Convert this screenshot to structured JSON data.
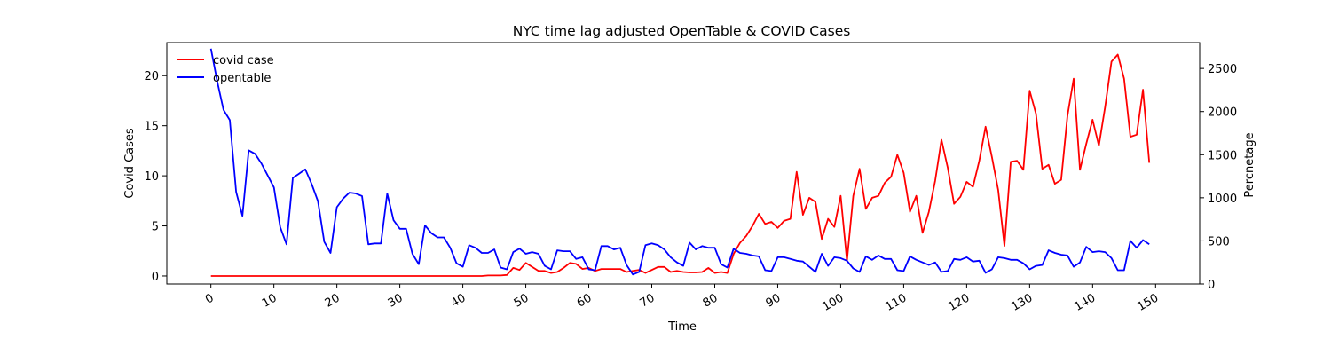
{
  "chart_data": {
    "type": "line",
    "title": "NYC time lag adjusted OpenTable & COVID Cases",
    "xlabel": "Time",
    "ylabel": "Covid Cases",
    "ylabel_right": "Percnetage",
    "xlim": [
      -7,
      157
    ],
    "ylim": [
      -0.8,
      23.3
    ],
    "ylim_right": [
      0,
      2800
    ],
    "xticks": [
      0,
      10,
      20,
      30,
      40,
      50,
      60,
      70,
      80,
      90,
      100,
      110,
      120,
      130,
      140,
      150
    ],
    "yticks": [
      0,
      5,
      10,
      15,
      20
    ],
    "yticks_right": [
      0,
      500,
      1000,
      1500,
      2000,
      2500
    ],
    "legend_position": "upper-left",
    "grid": false,
    "series": [
      {
        "name": "covid case",
        "axis": "left",
        "color": "#ff0000",
        "x": [
          0,
          1,
          2,
          3,
          4,
          5,
          6,
          7,
          8,
          9,
          10,
          11,
          12,
          13,
          14,
          15,
          16,
          17,
          18,
          19,
          20,
          21,
          22,
          23,
          24,
          25,
          26,
          27,
          28,
          29,
          30,
          31,
          32,
          33,
          34,
          35,
          36,
          37,
          38,
          39,
          40,
          41,
          42,
          43,
          44,
          45,
          46,
          47,
          48,
          49,
          50,
          51,
          52,
          53,
          54,
          55,
          56,
          57,
          58,
          59,
          60,
          61,
          62,
          63,
          64,
          65,
          66,
          67,
          68,
          69,
          70,
          71,
          72,
          73,
          74,
          75,
          76,
          77,
          78,
          79,
          80,
          81,
          82,
          83,
          84,
          85,
          86,
          87,
          88,
          89,
          90,
          91,
          92,
          93,
          94,
          95,
          96,
          97,
          98,
          99,
          100,
          101,
          102,
          103,
          104,
          105,
          106,
          107,
          108,
          109,
          110,
          111,
          112,
          113,
          114,
          115,
          116,
          117,
          118,
          119,
          120,
          121,
          122,
          123,
          124,
          125,
          126,
          127,
          128,
          129,
          130,
          131,
          132,
          133,
          134,
          135,
          136,
          137,
          138,
          139,
          140,
          141,
          142,
          143,
          144,
          145,
          146,
          147,
          148,
          149
        ],
        "y": [
          0,
          0,
          0,
          0,
          0,
          0,
          0,
          0,
          0,
          0,
          0,
          0,
          0,
          0,
          0,
          0,
          0,
          0,
          0,
          0,
          0,
          0,
          0,
          0,
          0,
          0,
          0,
          0,
          0,
          0,
          0,
          0,
          0,
          0,
          0,
          0,
          0,
          0,
          0,
          0,
          0,
          0,
          0,
          0,
          0.05,
          0.05,
          0.05,
          0.1,
          0.8,
          0.6,
          1.3,
          0.9,
          0.5,
          0.5,
          0.3,
          0.4,
          0.8,
          1.3,
          1.2,
          0.7,
          0.8,
          0.5,
          0.7,
          0.7,
          0.7,
          0.7,
          0.4,
          0.5,
          0.6,
          0.3,
          0.6,
          0.9,
          0.9,
          0.4,
          0.5,
          0.4,
          0.35,
          0.35,
          0.4,
          0.8,
          0.3,
          0.4,
          0.3,
          2.2,
          3.3,
          4.0,
          5.0,
          6.2,
          5.2,
          5.4,
          4.8,
          5.5,
          5.7,
          10.4,
          6.1,
          7.8,
          7.4,
          3.7,
          5.7,
          4.9,
          8.0,
          1.5,
          8.0,
          10.7,
          6.7,
          7.8,
          8.0,
          9.3,
          9.9,
          12.1,
          10.3,
          6.4,
          8.0,
          4.3,
          6.4,
          9.5,
          13.6,
          10.8,
          7.2,
          7.9,
          9.4,
          8.9,
          11.5,
          14.9,
          11.9,
          8.6,
          3.0,
          11.4,
          11.5,
          10.6,
          18.5,
          16.2,
          10.7,
          11.1,
          9.2,
          9.6,
          16.0,
          19.7,
          10.6,
          13.2,
          15.6,
          13.0,
          16.9,
          21.4,
          22.1,
          19.7,
          13.9,
          14.1,
          18.6,
          11.3
        ]
      },
      {
        "name": "opentable",
        "axis": "right",
        "color": "#0000ff",
        "x": [
          0,
          1,
          2,
          3,
          4,
          5,
          6,
          7,
          8,
          9,
          10,
          11,
          12,
          13,
          14,
          15,
          16,
          17,
          18,
          19,
          20,
          21,
          22,
          23,
          24,
          25,
          26,
          27,
          28,
          29,
          30,
          31,
          32,
          33,
          34,
          35,
          36,
          37,
          38,
          39,
          40,
          41,
          42,
          43,
          44,
          45,
          46,
          47,
          48,
          49,
          50,
          51,
          52,
          53,
          54,
          55,
          56,
          57,
          58,
          59,
          60,
          61,
          62,
          63,
          64,
          65,
          66,
          67,
          68,
          69,
          70,
          71,
          72,
          73,
          74,
          75,
          76,
          77,
          78,
          79,
          80,
          81,
          82,
          83,
          84,
          85,
          86,
          87,
          88,
          89,
          90,
          91,
          92,
          93,
          94,
          95,
          96,
          97,
          98,
          99,
          100,
          101,
          102,
          103,
          104,
          105,
          106,
          107,
          108,
          109,
          110,
          111,
          112,
          113,
          114,
          115,
          116,
          117,
          118,
          119,
          120,
          121,
          122,
          123,
          124,
          125,
          126,
          127,
          128,
          129,
          130,
          131,
          132,
          133,
          134,
          135,
          136,
          137,
          138,
          139,
          140,
          141,
          142,
          143,
          144,
          145,
          146,
          147,
          148,
          149
        ],
        "y": [
          2730,
          2350,
          2020,
          1900,
          1070,
          790,
          1550,
          1510,
          1400,
          1260,
          1120,
          660,
          460,
          1230,
          1280,
          1330,
          1160,
          960,
          490,
          360,
          890,
          990,
          1060,
          1050,
          1020,
          460,
          470,
          470,
          1050,
          740,
          640,
          640,
          350,
          230,
          680,
          590,
          540,
          540,
          420,
          240,
          200,
          450,
          420,
          360,
          360,
          400,
          190,
          170,
          370,
          410,
          350,
          370,
          350,
          210,
          170,
          390,
          380,
          380,
          290,
          310,
          170,
          160,
          440,
          440,
          400,
          420,
          220,
          110,
          140,
          450,
          470,
          450,
          400,
          310,
          250,
          210,
          480,
          400,
          440,
          420,
          420,
          230,
          190,
          410,
          360,
          350,
          330,
          320,
          160,
          150,
          310,
          310,
          290,
          270,
          260,
          200,
          140,
          350,
          210,
          310,
          300,
          270,
          180,
          140,
          320,
          280,
          330,
          290,
          290,
          160,
          150,
          320,
          280,
          250,
          220,
          250,
          140,
          150,
          290,
          280,
          310,
          260,
          270,
          130,
          170,
          310,
          300,
          280,
          280,
          240,
          170,
          210,
          220,
          390,
          360,
          340,
          330,
          200,
          250,
          430,
          370,
          380,
          370,
          300,
          160,
          160,
          500,
          420,
          510,
          460
        ]
      }
    ]
  }
}
